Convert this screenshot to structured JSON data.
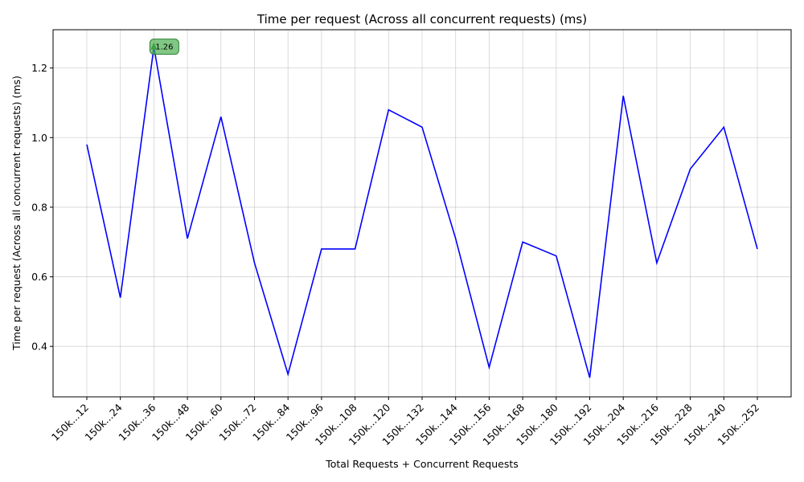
{
  "chart_data": {
    "type": "line",
    "title": "Time per request (Across all concurrent requests) (ms)",
    "xlabel": "Total Requests + Concurrent Requests",
    "ylabel": "Time per request (Across all concurrent requests) (ms)",
    "categories": [
      "150k...12",
      "150k...24",
      "150k...36",
      "150k...48",
      "150k...60",
      "150k...72",
      "150k...84",
      "150k...96",
      "150k...108",
      "150k...120",
      "150k...132",
      "150k...144",
      "150k...156",
      "150k...168",
      "150k...180",
      "150k...192",
      "150k...204",
      "150k...216",
      "150k...228",
      "150k...240",
      "150k...252"
    ],
    "values": [
      0.98,
      0.54,
      1.26,
      0.71,
      1.06,
      0.64,
      0.32,
      0.68,
      0.68,
      1.08,
      1.03,
      0.71,
      0.34,
      0.7,
      0.66,
      0.31,
      1.12,
      0.64,
      0.91,
      1.03,
      0.68
    ],
    "ylim": [
      0.255,
      1.31
    ],
    "yticks": [
      0.4,
      0.6,
      0.8,
      1.0,
      1.2
    ],
    "ytick_labels": [
      "0.4",
      "0.6",
      "0.8",
      "1.0",
      "1.2"
    ],
    "grid": true,
    "line_color": "#0000ff",
    "annotation": {
      "index": 2,
      "label": "1.26",
      "color": "#4caf50"
    }
  }
}
